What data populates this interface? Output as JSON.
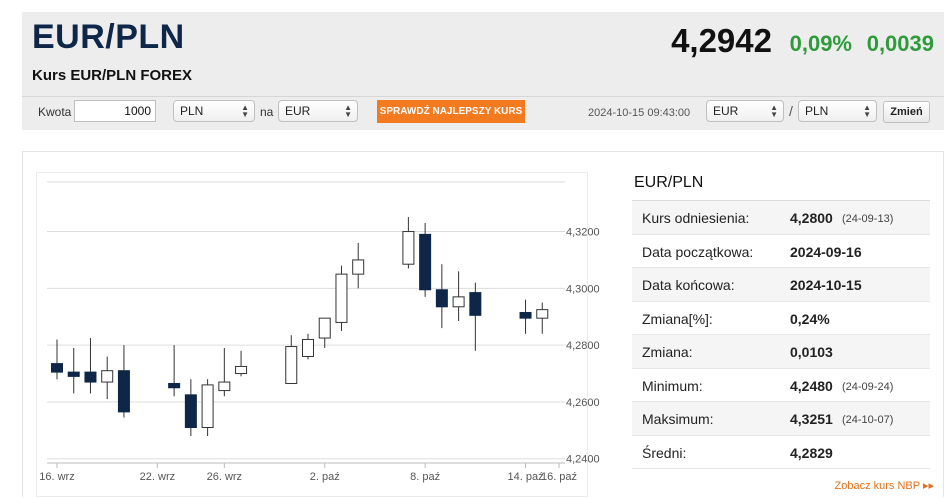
{
  "header": {
    "title": "EUR/PLN",
    "subtitle": "Kurs EUR/PLN FOREX",
    "rate": "4,2942",
    "change_pct": "0,09%",
    "change_abs": "0,0039",
    "colors": {
      "positive": "#2e9b3a",
      "title": "#0e2647"
    }
  },
  "toolbar": {
    "amount_label": "Kwota",
    "amount_value": "1000",
    "from_currency": "PLN",
    "to_label": "na",
    "to_currency": "EUR",
    "best_rate_label": "SPRAWDŹ NAJLEPSZY KURS",
    "datetime": "2024-10-15 09:43:00",
    "pair_base": "EUR",
    "pair_separator": "/",
    "pair_quote": "PLN",
    "change_button": "Zmień"
  },
  "stats": {
    "title": "EUR/PLN",
    "rows": [
      {
        "label": "Kurs odniesienia:",
        "value": "4,2800",
        "date": "(24-09-13)"
      },
      {
        "label": "Data początkowa:",
        "value": "2024-09-16",
        "date": ""
      },
      {
        "label": "Data końcowa:",
        "value": "2024-10-15",
        "date": ""
      },
      {
        "label": "Zmiana[%]:",
        "value": "0,24%",
        "date": ""
      },
      {
        "label": "Zmiana:",
        "value": "0,0103",
        "date": ""
      },
      {
        "label": "Minimum:",
        "value": "4,2480",
        "date": "(24-09-24)"
      },
      {
        "label": "Maksimum:",
        "value": "4,3251",
        "date": "(24-10-07)"
      },
      {
        "label": "Średni:",
        "value": "4,2829",
        "date": ""
      }
    ],
    "nbp_link": "Zobacz kurs NBP ▸▸"
  },
  "chart_data": {
    "type": "candlestick",
    "ylim": [
      4.2385,
      4.3385
    ],
    "y_ticks": [
      4.24,
      4.26,
      4.28,
      4.3,
      4.32
    ],
    "y_tick_labels": [
      "4,2400",
      "4,2600",
      "4,2800",
      "4,3000",
      "4,3200"
    ],
    "x_tick_labels": [
      {
        "label": "16. wrz",
        "date": "2024-09-16"
      },
      {
        "label": "22. wrz",
        "date": "2024-09-22"
      },
      {
        "label": "26. wrz",
        "date": "2024-09-26"
      },
      {
        "label": "2. paź",
        "date": "2024-10-02"
      },
      {
        "label": "8. paź",
        "date": "2024-10-08"
      },
      {
        "label": "14. paź",
        "date": "2024-10-14"
      },
      {
        "label": "16. paź",
        "date": "2024-10-16"
      }
    ],
    "colors": {
      "down": "#0e2647",
      "up": "#ffffff",
      "wick": "#333333",
      "grid": "#dddddd"
    },
    "candles": [
      {
        "date": "2024-09-16",
        "open": 4.2735,
        "high": 4.282,
        "low": 4.268,
        "close": 4.2705
      },
      {
        "date": "2024-09-17",
        "open": 4.2705,
        "high": 4.279,
        "low": 4.263,
        "close": 4.269
      },
      {
        "date": "2024-09-18",
        "open": 4.2705,
        "high": 4.2825,
        "low": 4.263,
        "close": 4.267
      },
      {
        "date": "2024-09-19",
        "open": 4.267,
        "high": 4.276,
        "low": 4.261,
        "close": 4.271
      },
      {
        "date": "2024-09-20",
        "open": 4.271,
        "high": 4.28,
        "low": 4.2545,
        "close": 4.2565
      },
      {
        "date": "2024-09-23",
        "open": 4.2665,
        "high": 4.28,
        "low": 4.262,
        "close": 4.265
      },
      {
        "date": "2024-09-24",
        "open": 4.2625,
        "high": 4.268,
        "low": 4.248,
        "close": 4.251
      },
      {
        "date": "2024-09-25",
        "open": 4.251,
        "high": 4.268,
        "low": 4.248,
        "close": 4.266
      },
      {
        "date": "2024-09-26",
        "open": 4.264,
        "high": 4.279,
        "low": 4.262,
        "close": 4.267
      },
      {
        "date": "2024-09-27",
        "open": 4.27,
        "high": 4.278,
        "low": 4.269,
        "close": 4.2725
      },
      {
        "date": "2024-09-30",
        "open": 4.2665,
        "high": 4.2835,
        "low": 4.2665,
        "close": 4.2795
      },
      {
        "date": "2024-10-01",
        "open": 4.276,
        "high": 4.284,
        "low": 4.275,
        "close": 4.282
      },
      {
        "date": "2024-10-02",
        "open": 4.2825,
        "high": 4.2895,
        "low": 4.279,
        "close": 4.2895
      },
      {
        "date": "2024-10-03",
        "open": 4.288,
        "high": 4.308,
        "low": 4.285,
        "close": 4.305
      },
      {
        "date": "2024-10-04",
        "open": 4.305,
        "high": 4.316,
        "low": 4.3,
        "close": 4.31
      },
      {
        "date": "2024-10-07",
        "open": 4.3085,
        "high": 4.3251,
        "low": 4.307,
        "close": 4.32
      },
      {
        "date": "2024-10-08",
        "open": 4.319,
        "high": 4.323,
        "low": 4.297,
        "close": 4.2995
      },
      {
        "date": "2024-10-09",
        "open": 4.2995,
        "high": 4.3085,
        "low": 4.286,
        "close": 4.2935
      },
      {
        "date": "2024-10-10",
        "open": 4.2935,
        "high": 4.306,
        "low": 4.2885,
        "close": 4.297
      },
      {
        "date": "2024-10-11",
        "open": 4.2985,
        "high": 4.302,
        "low": 4.278,
        "close": 4.2905
      },
      {
        "date": "2024-10-14",
        "open": 4.2915,
        "high": 4.296,
        "low": 4.284,
        "close": 4.2895
      },
      {
        "date": "2024-10-15",
        "open": 4.2895,
        "high": 4.295,
        "low": 4.284,
        "close": 4.2925
      }
    ]
  }
}
